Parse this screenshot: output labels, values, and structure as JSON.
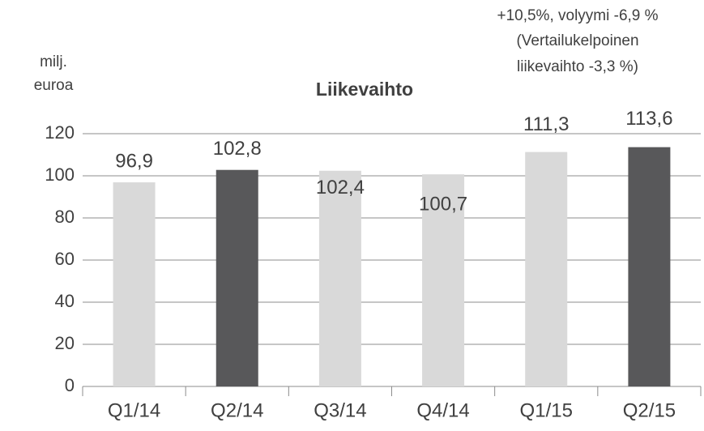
{
  "chart_data": {
    "type": "bar",
    "title": "Liikevaihto",
    "y_label": [
      "milj.",
      "euroa"
    ],
    "annotation": [
      "+10,5%, volyymi -6,9 %",
      "(Vertailukelpoinen",
      "liikevaihto  -3,3 %)"
    ],
    "categories": [
      "Q1/14",
      "Q2/14",
      "Q3/14",
      "Q4/14",
      "Q1/15",
      "Q2/15"
    ],
    "values": [
      96.9,
      102.8,
      102.4,
      100.7,
      111.3,
      113.6
    ],
    "value_labels": [
      "96,9",
      "102,8",
      "102,4",
      "100,7",
      "111,3",
      "113,6"
    ],
    "colors": [
      "#d9d9d9",
      "#58585a",
      "#d9d9d9",
      "#d9d9d9",
      "#d9d9d9",
      "#58585a"
    ],
    "ylim": [
      0,
      120
    ],
    "yticks": [
      0,
      20,
      40,
      60,
      80,
      100,
      120
    ],
    "grid": true
  }
}
